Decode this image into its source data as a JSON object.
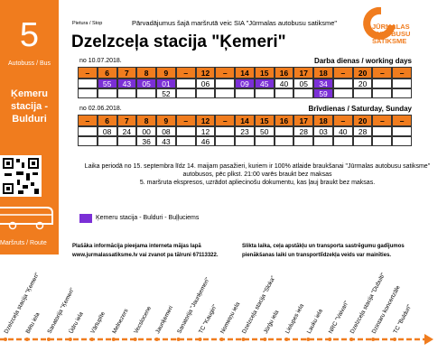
{
  "sidebar": {
    "route_number": "5",
    "type_label": "Autobuss / Bus",
    "route_name": "Ķemeru stacija - Bulduri",
    "route_label": "Maršruts / Route"
  },
  "header": {
    "stop_label": "Pietura / Stop",
    "operator": "Pārvadājumus šajā maršrutā veic SIA \"Jūrmalas autobusu satiksme\"",
    "stop_name": "Dzelzceļa stacija \"Ķemeri\"",
    "logo": [
      "JŪRMALAS",
      "AUTOBUSU",
      "SATIKSME"
    ]
  },
  "timetables": [
    {
      "valid_from": "no 10.07.2018.",
      "day_type": "Darba dienas / working days",
      "hours": [
        "–",
        "6",
        "7",
        "8",
        "9",
        "–",
        "12",
        "–",
        "14",
        "15",
        "16",
        "17",
        "18",
        "–",
        "20",
        "–",
        "–"
      ],
      "rows": [
        [
          null,
          {
            "value": "55",
            "color": "#7b2fd6"
          },
          {
            "value": "43",
            "color": "#7b2fd6"
          },
          {
            "value": "05",
            "color": "#7b2fd6"
          },
          {
            "value": "01",
            "color": "#7b2fd6"
          },
          null,
          "06",
          null,
          {
            "value": "09",
            "color": "#7b2fd6"
          },
          {
            "value": "45",
            "color": "#7b2fd6"
          },
          "40",
          "05",
          {
            "value": "34",
            "color": "#7b2fd6"
          },
          null,
          "20",
          null,
          null
        ],
        [
          null,
          null,
          null,
          null,
          "52",
          null,
          null,
          null,
          null,
          null,
          null,
          null,
          {
            "value": "59",
            "color": "#7b2fd6"
          },
          null,
          null,
          null,
          null
        ]
      ]
    },
    {
      "valid_from": "no 02.06.2018.",
      "day_type": "Brīvdienas / Saturday, Sunday",
      "hours": [
        "–",
        "6",
        "7",
        "8",
        "9",
        "–",
        "12",
        "–",
        "14",
        "15",
        "16",
        "17",
        "18",
        "–",
        "20",
        "–",
        "–"
      ],
      "rows": [
        [
          null,
          "08",
          "24",
          "00",
          "08",
          null,
          "12",
          null,
          "23",
          "50",
          null,
          "28",
          "03",
          "40",
          "28",
          null,
          null
        ],
        [
          null,
          null,
          null,
          "36",
          "43",
          null,
          "46",
          null,
          null,
          null,
          null,
          null,
          null,
          null,
          null,
          null,
          null
        ]
      ]
    }
  ],
  "note": [
    "Laika periodā no 15. septembra līdz 14. maijam pasažieri, kuriem ir 100% atlaide braukšanai \"Jūrmalas autobusu satiksme\" autobusos, pēc plkst. 21:00 varēs braukt bez maksas",
    "5. maršruta ekspresos, uzrādot apliecinošu dokumentu, kas ļauj braukt bez maksas."
  ],
  "legend": {
    "color": "#7b2fd6",
    "label": "Ķemeru stacija - Bulduri - Buļļuciems"
  },
  "footer": {
    "info": [
      "Plašāka informācija pieejama interneta mājas lapā",
      "www.jurmalassatiksme.lv vai zvanot pa tālruni 67113322."
    ],
    "warning": [
      "Slikta laika, ceļa apstākļu un transporta sastrēgumu gadījumos",
      "pienākšanas laiki un transportlīdzekļa veids var mainīties."
    ]
  },
  "route": {
    "stops": [
      "Dzelzceļa stacija \"Ķemeri\"",
      "Bētu iela",
      "Sanatorija \"Ķemeri\"",
      "Ūdru iela",
      "Vārtupīte",
      "Melnezers",
      "Vecslocene",
      "Jaunķemeri",
      "Sanatorija \"Jaunķemeri\"",
      "TC \"Kaugiri\"",
      "Nometņu iela",
      "Dzelzceļa stacija \"Sloka\"",
      "Jūrģu iela",
      "Lielupes iela",
      "Lauku iela",
      "NRC \"Vaivari\"",
      "Dzelzceļa stacija \"Dubulti\"",
      "Dzintaru koncertzāle",
      "TC \"Bulduri\""
    ]
  }
}
